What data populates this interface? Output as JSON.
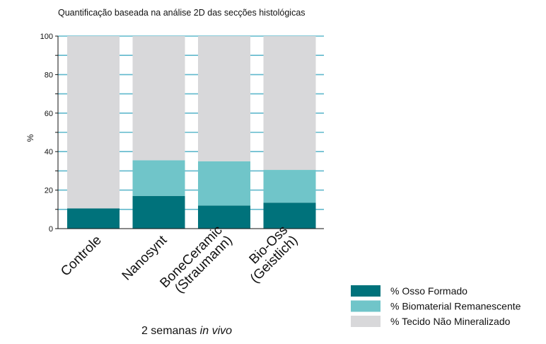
{
  "chart_data": {
    "type": "bar",
    "stacked": true,
    "title": "Quantificação baseada na análise 2D das secções histológicas",
    "ylabel": "%",
    "xlabel": {
      "prefix": "2 semanas ",
      "italic": "in vivo"
    },
    "ylim": [
      0,
      100
    ],
    "yticks": [
      0,
      20,
      40,
      60,
      80,
      100
    ],
    "grid": true,
    "legend_position": "bottom-right",
    "categories": [
      [
        "Controle"
      ],
      [
        "Nanosynt"
      ],
      [
        "BoneCeramic",
        "(Straumann)"
      ],
      [
        "Bio-Oss",
        "(Geistlich)"
      ]
    ],
    "series": [
      {
        "name": "% Osso Formado",
        "color": "#00727b",
        "values": [
          10.5,
          17,
          12,
          13.5
        ]
      },
      {
        "name": "% Biomaterial Remanescente",
        "color": "#70c5c9",
        "values": [
          0,
          18.5,
          23,
          17
        ]
      },
      {
        "name": "% Tecido Não Mineralizado",
        "color": "#d8d8da",
        "values": [
          89.5,
          64.5,
          65,
          69.5
        ]
      }
    ],
    "grid_color": "#5fb8cc"
  }
}
